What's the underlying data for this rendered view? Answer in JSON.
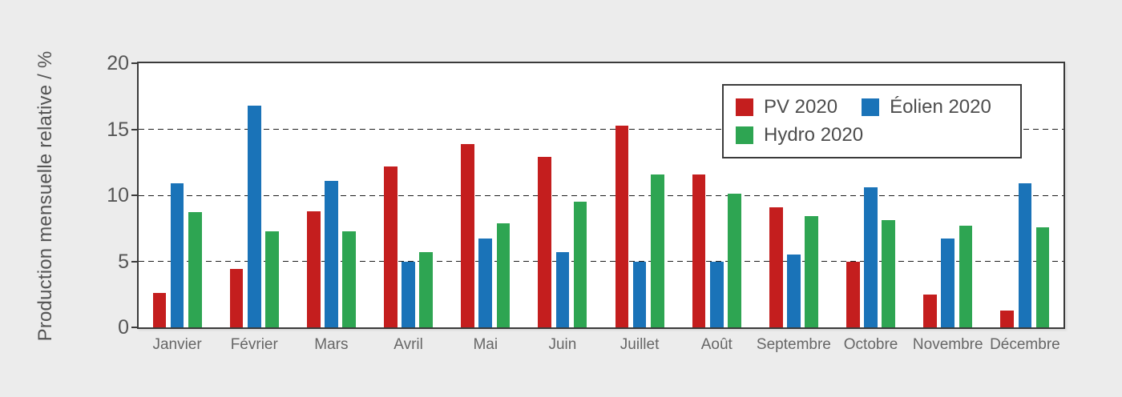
{
  "chart_data": {
    "type": "bar",
    "title": "",
    "xlabel": "",
    "ylabel": "Production mensuelle relative / %",
    "ylim": [
      0,
      20
    ],
    "yticks": [
      0,
      5,
      10,
      15,
      20
    ],
    "gridlines": {
      "style": "dashed",
      "at": [
        5,
        10,
        15
      ],
      "color": "#1f1f1f"
    },
    "legend_position": "top-right-inside",
    "legend_rows": [
      [
        0,
        1
      ],
      [
        2
      ]
    ],
    "categories": [
      "Janvier",
      "Février",
      "Mars",
      "Avril",
      "Mai",
      "Juin",
      "Juillet",
      "Août",
      "Septembre",
      "Octobre",
      "Novembre",
      "Décembre"
    ],
    "series": [
      {
        "name": "PV 2020",
        "color": "#c41e1e",
        "values": [
          2.6,
          4.4,
          8.8,
          12.2,
          13.9,
          12.9,
          15.3,
          11.6,
          9.1,
          5.0,
          2.5,
          1.3
        ]
      },
      {
        "name": "Éolien 2020",
        "color": "#1a73b8",
        "values": [
          10.9,
          16.8,
          11.1,
          5.0,
          6.7,
          5.7,
          5.0,
          5.0,
          5.5,
          10.6,
          6.7,
          10.9
        ]
      },
      {
        "name": "Hydro 2020",
        "color": "#2ea552",
        "values": [
          8.7,
          7.3,
          7.3,
          5.7,
          7.9,
          9.5,
          11.6,
          10.1,
          8.4,
          8.1,
          7.7,
          7.6
        ]
      }
    ]
  },
  "colors": {
    "page_background": "#ececec",
    "plot_background": "#ffffff",
    "axis_frame": "#3b3b3b",
    "tick_text": "#555555",
    "month_text": "#666666",
    "legend_text": "#4d4d4d"
  }
}
